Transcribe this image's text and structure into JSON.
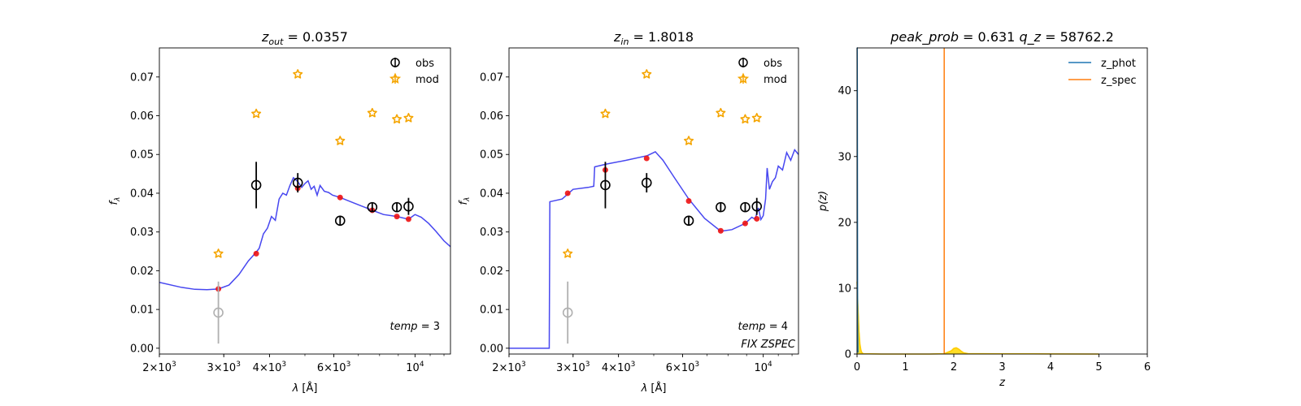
{
  "chart_data": [
    {
      "type": "scatter",
      "panel": "sed_zout",
      "title_main": "z",
      "title_sub": "out",
      "title_rest": " = 0.0357",
      "xlabel": "λ [Å]",
      "ylabel": "f",
      "ylabel_sub": "λ",
      "xscale": "log",
      "xlim": [
        2000,
        12500
      ],
      "ylim": [
        -0.0015,
        0.0775
      ],
      "xticks": [
        {
          "v": 2000,
          "b": "2×10",
          "e": "3"
        },
        {
          "v": 3000,
          "b": "3×10",
          "e": "3"
        },
        {
          "v": 4000,
          "b": "4×10",
          "e": "3"
        },
        {
          "v": 6000,
          "b": "6×10",
          "e": "3"
        },
        {
          "v": 10000,
          "b": "10",
          "e": "4"
        }
      ],
      "yticks": [
        "0.00",
        "0.01",
        "0.02",
        "0.03",
        "0.04",
        "0.05",
        "0.06",
        "0.07"
      ],
      "annotation": "temp = 3",
      "annotation2": "",
      "legend": [
        "obs",
        "mod"
      ],
      "obs": [
        {
          "x": 2900,
          "y": 0.0092,
          "err": 0.008,
          "masked": true
        },
        {
          "x": 3680,
          "y": 0.0421,
          "err": 0.006
        },
        {
          "x": 4780,
          "y": 0.0427,
          "err": 0.0025
        },
        {
          "x": 6240,
          "y": 0.0329,
          "err": 0.0012
        },
        {
          "x": 7640,
          "y": 0.0364,
          "err": 0.0012
        },
        {
          "x": 8920,
          "y": 0.0364,
          "err": 0.0012
        },
        {
          "x": 9600,
          "y": 0.0366,
          "err": 0.0022
        }
      ],
      "mod": [
        {
          "x": 2900,
          "y": 0.0244
        },
        {
          "x": 3680,
          "y": 0.0605
        },
        {
          "x": 4780,
          "y": 0.0707
        },
        {
          "x": 6240,
          "y": 0.0535
        },
        {
          "x": 7640,
          "y": 0.0607
        },
        {
          "x": 8920,
          "y": 0.0591
        },
        {
          "x": 9600,
          "y": 0.0594
        }
      ],
      "fit": [
        {
          "x": 2900,
          "y": 0.0153
        },
        {
          "x": 3680,
          "y": 0.0244
        },
        {
          "x": 4780,
          "y": 0.0413
        },
        {
          "x": 6240,
          "y": 0.0389
        },
        {
          "x": 7640,
          "y": 0.0356
        },
        {
          "x": 8920,
          "y": 0.034
        },
        {
          "x": 9600,
          "y": 0.0333
        }
      ],
      "model_curve": [
        [
          2000,
          0.017
        ],
        [
          2300,
          0.0157
        ],
        [
          2500,
          0.0152
        ],
        [
          2700,
          0.0151
        ],
        [
          2900,
          0.0153
        ],
        [
          3100,
          0.0163
        ],
        [
          3300,
          0.019
        ],
        [
          3500,
          0.0225
        ],
        [
          3680,
          0.0248
        ],
        [
          3750,
          0.0258
        ],
        [
          3850,
          0.0295
        ],
        [
          3950,
          0.031
        ],
        [
          4050,
          0.034
        ],
        [
          4150,
          0.033
        ],
        [
          4250,
          0.0385
        ],
        [
          4350,
          0.04
        ],
        [
          4450,
          0.0395
        ],
        [
          4550,
          0.042
        ],
        [
          4650,
          0.044
        ],
        [
          4780,
          0.043
        ],
        [
          4900,
          0.0415
        ],
        [
          5000,
          0.0425
        ],
        [
          5100,
          0.0432
        ],
        [
          5200,
          0.041
        ],
        [
          5300,
          0.0418
        ],
        [
          5400,
          0.0395
        ],
        [
          5500,
          0.042
        ],
        [
          5650,
          0.0405
        ],
        [
          5800,
          0.0402
        ],
        [
          5950,
          0.0395
        ],
        [
          6240,
          0.0389
        ],
        [
          6800,
          0.0375
        ],
        [
          7640,
          0.0356
        ],
        [
          8200,
          0.0345
        ],
        [
          8920,
          0.034
        ],
        [
          9600,
          0.0333
        ],
        [
          10000,
          0.0345
        ],
        [
          10400,
          0.0338
        ],
        [
          10900,
          0.0322
        ],
        [
          11400,
          0.0302
        ],
        [
          12000,
          0.0277
        ],
        [
          12500,
          0.0262
        ]
      ]
    },
    {
      "type": "scatter",
      "panel": "sed_zin",
      "title_main": "z",
      "title_sub": "in",
      "title_rest": " = 1.8018",
      "xlabel": "λ [Å]",
      "ylabel": "f",
      "ylabel_sub": "λ",
      "xscale": "log",
      "xlim": [
        2000,
        12500
      ],
      "ylim": [
        -0.0015,
        0.0775
      ],
      "xticks": [
        {
          "v": 2000,
          "b": "2×10",
          "e": "3"
        },
        {
          "v": 3000,
          "b": "3×10",
          "e": "3"
        },
        {
          "v": 4000,
          "b": "4×10",
          "e": "3"
        },
        {
          "v": 6000,
          "b": "6×10",
          "e": "3"
        },
        {
          "v": 10000,
          "b": "10",
          "e": "4"
        }
      ],
      "yticks": [
        "0.00",
        "0.01",
        "0.02",
        "0.03",
        "0.04",
        "0.05",
        "0.06",
        "0.07"
      ],
      "annotation": "temp = 4",
      "annotation2": "FIX ZSPEC",
      "legend": [
        "obs",
        "mod"
      ],
      "obs": [
        {
          "x": 2900,
          "y": 0.0092,
          "err": 0.008,
          "masked": true
        },
        {
          "x": 3680,
          "y": 0.0421,
          "err": 0.006
        },
        {
          "x": 4780,
          "y": 0.0427,
          "err": 0.0025
        },
        {
          "x": 6240,
          "y": 0.0329,
          "err": 0.0012
        },
        {
          "x": 7640,
          "y": 0.0364,
          "err": 0.0012
        },
        {
          "x": 8920,
          "y": 0.0364,
          "err": 0.0012
        },
        {
          "x": 9600,
          "y": 0.0366,
          "err": 0.0022
        }
      ],
      "mod": [
        {
          "x": 2900,
          "y": 0.0244
        },
        {
          "x": 3680,
          "y": 0.0605
        },
        {
          "x": 4780,
          "y": 0.0707
        },
        {
          "x": 6240,
          "y": 0.0535
        },
        {
          "x": 7640,
          "y": 0.0607
        },
        {
          "x": 8920,
          "y": 0.0591
        },
        {
          "x": 9600,
          "y": 0.0594
        }
      ],
      "fit": [
        {
          "x": 2900,
          "y": 0.04
        },
        {
          "x": 3680,
          "y": 0.046
        },
        {
          "x": 4780,
          "y": 0.049
        },
        {
          "x": 6240,
          "y": 0.038
        },
        {
          "x": 7640,
          "y": 0.0303
        },
        {
          "x": 8920,
          "y": 0.0322
        },
        {
          "x": 9600,
          "y": 0.0334
        }
      ],
      "model_curve": [
        [
          2000,
          0.0
        ],
        [
          2580,
          0.0
        ],
        [
          2590,
          0.0378
        ],
        [
          2800,
          0.0385
        ],
        [
          3000,
          0.041
        ],
        [
          3300,
          0.0415
        ],
        [
          3420,
          0.0418
        ],
        [
          3440,
          0.0468
        ],
        [
          3700,
          0.0475
        ],
        [
          4200,
          0.0485
        ],
        [
          4800,
          0.0497
        ],
        [
          5050,
          0.0507
        ],
        [
          5300,
          0.0485
        ],
        [
          5700,
          0.044
        ],
        [
          6240,
          0.0385
        ],
        [
          6900,
          0.0335
        ],
        [
          7640,
          0.0302
        ],
        [
          8200,
          0.0306
        ],
        [
          8920,
          0.0322
        ],
        [
          9300,
          0.0338
        ],
        [
          9500,
          0.0333
        ],
        [
          9700,
          0.0362
        ],
        [
          9850,
          0.0332
        ],
        [
          10000,
          0.0342
        ],
        [
          10150,
          0.0385
        ],
        [
          10250,
          0.0465
        ],
        [
          10400,
          0.041
        ],
        [
          10600,
          0.043
        ],
        [
          10800,
          0.044
        ],
        [
          11000,
          0.047
        ],
        [
          11300,
          0.046
        ],
        [
          11600,
          0.0505
        ],
        [
          11900,
          0.0485
        ],
        [
          12200,
          0.0512
        ],
        [
          12500,
          0.05
        ]
      ]
    },
    {
      "type": "line",
      "panel": "pz",
      "title_prob": "peak_prob",
      "title_prob_val": " = 0.631",
      "title_q": "q_z",
      "title_q_val": " = 58762.2",
      "xlabel": "z",
      "ylabel": "p(z)",
      "xlim": [
        0,
        6
      ],
      "ylim": [
        0,
        46.5
      ],
      "xticks": [
        "0",
        "1",
        "2",
        "3",
        "4",
        "5",
        "6"
      ],
      "yticks": [
        "0",
        "10",
        "20",
        "30",
        "40"
      ],
      "legend": [
        "z_phot",
        "z_spec"
      ],
      "series": [
        {
          "name": "z_phot",
          "x": [
            0.0,
            0.003,
            0.006,
            0.009,
            0.012,
            0.02
          ],
          "y": [
            46.5,
            46.5,
            40.0,
            20.0,
            5.0,
            0.2
          ]
        },
        {
          "name": "z_spec",
          "x": [
            1.8018,
            1.8018
          ],
          "y": [
            0,
            46.5
          ]
        }
      ],
      "pz_curve": {
        "x": [
          0.0,
          0.02,
          0.04,
          0.06,
          0.08,
          0.1,
          0.13,
          0.5,
          1.0,
          1.5,
          1.8,
          1.95,
          2.0,
          2.05,
          2.1,
          2.15,
          2.2,
          2.3,
          2.6,
          3.0,
          4.0,
          5.0
        ],
        "y": [
          11.0,
          7.0,
          3.5,
          1.5,
          0.6,
          0.2,
          0.05,
          0.0,
          0.0,
          0.0,
          0.05,
          0.5,
          0.85,
          0.95,
          0.75,
          0.45,
          0.2,
          0.05,
          0.05,
          0.03,
          0.02,
          0.0
        ]
      },
      "colors": {
        "z_phot": "#1f77b4",
        "z_spec": "#ff7f0e",
        "pz_fill": "#ffd700"
      }
    }
  ]
}
